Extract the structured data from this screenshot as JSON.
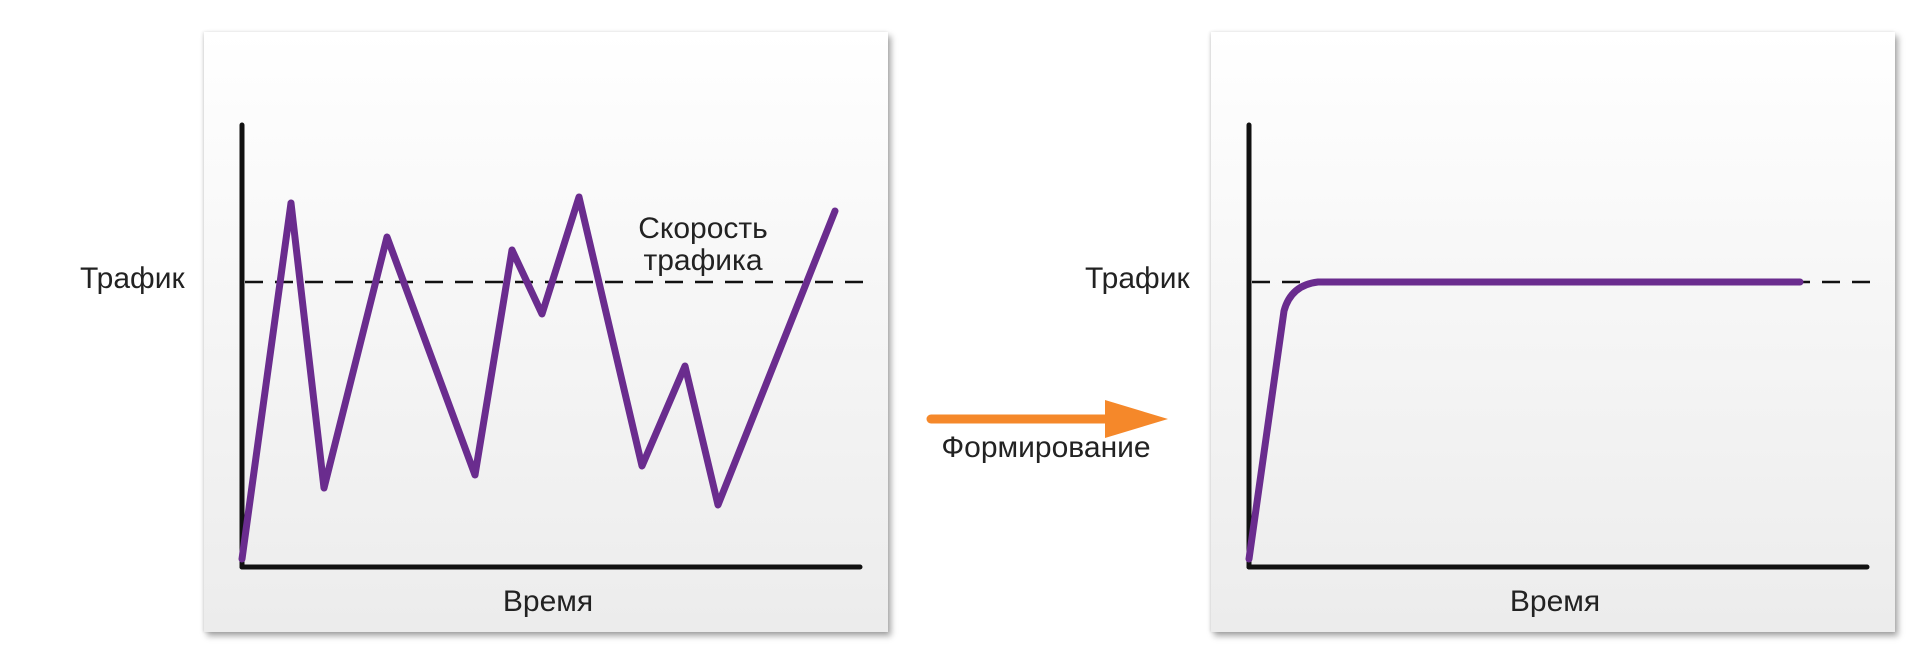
{
  "left_chart": {
    "y_label": "Трафик",
    "x_label": "Время",
    "series_label_line1": "Скорость",
    "series_label_line2": "трафика"
  },
  "right_chart": {
    "y_label": "Трафик",
    "x_label": "Время"
  },
  "arrow": {
    "label": "Формирование"
  },
  "colors": {
    "series": "#6a2c8e",
    "axis": "#111111",
    "arrow": "#f5882a"
  }
}
